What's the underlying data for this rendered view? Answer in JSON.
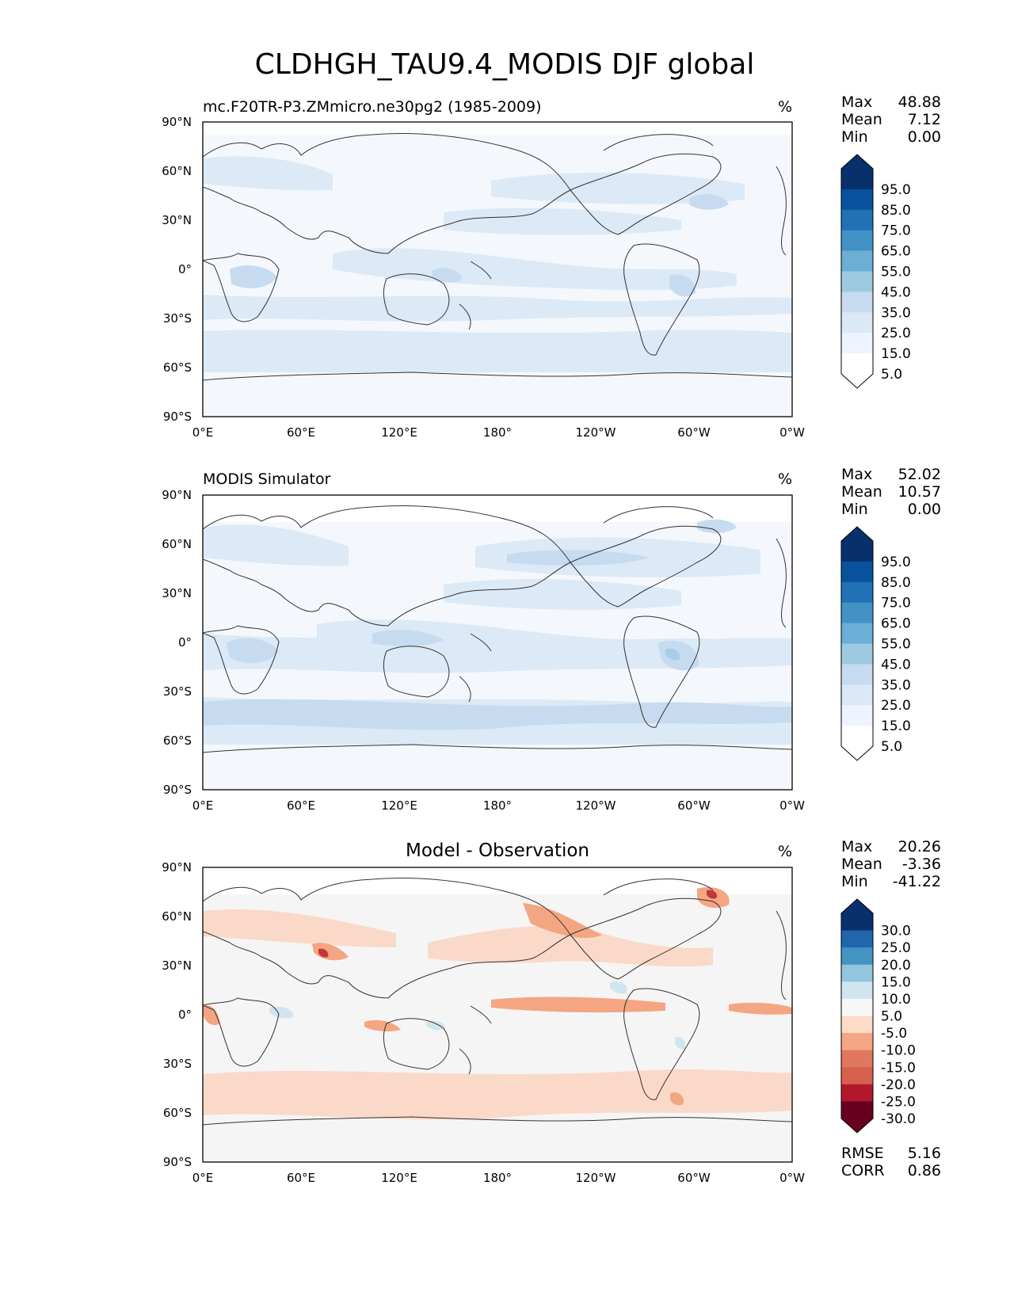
{
  "figure": {
    "title": "CLDHGH_TAU9.4_MODIS DJF global"
  },
  "axes": {
    "lat_ticks": [
      "90°N",
      "60°N",
      "30°N",
      "0°",
      "30°S",
      "60°S",
      "90°S"
    ],
    "lon_ticks": [
      "0°E",
      "60°E",
      "120°E",
      "180°",
      "120°W",
      "60°W",
      "0°W"
    ]
  },
  "panels": [
    {
      "id": "model",
      "left_title": "mc.F20TR-P3.ZMmicro.ne30pg2 (1985-2009)",
      "center_title": "",
      "units": "%",
      "stats": [
        {
          "label": "Max",
          "value": "48.88"
        },
        {
          "label": "Mean",
          "value": "7.12"
        },
        {
          "label": "Min",
          "value": "0.00"
        }
      ],
      "colorbar": {
        "labels": [
          "95.0",
          "85.0",
          "75.0",
          "65.0",
          "55.0",
          "45.0",
          "35.0",
          "25.0",
          "15.0",
          "5.0"
        ],
        "colors": [
          "#08306b",
          "#08519c",
          "#2171b5",
          "#4292c6",
          "#6baed6",
          "#9ecae1",
          "#c6dbef",
          "#dbe9f6",
          "#eff3ff",
          "#ffffff"
        ],
        "extend_top": "#08306b",
        "extend_bottom": "#ffffff"
      },
      "footer": []
    },
    {
      "id": "obs",
      "left_title": "MODIS Simulator",
      "center_title": "",
      "units": "%",
      "stats": [
        {
          "label": "Max",
          "value": "52.02"
        },
        {
          "label": "Mean",
          "value": "10.57"
        },
        {
          "label": "Min",
          "value": "0.00"
        }
      ],
      "colorbar": {
        "labels": [
          "95.0",
          "85.0",
          "75.0",
          "65.0",
          "55.0",
          "45.0",
          "35.0",
          "25.0",
          "15.0",
          "5.0"
        ],
        "colors": [
          "#08306b",
          "#08519c",
          "#2171b5",
          "#4292c6",
          "#6baed6",
          "#9ecae1",
          "#c6dbef",
          "#dbe9f6",
          "#eff3ff",
          "#ffffff"
        ],
        "extend_top": "#08306b",
        "extend_bottom": "#ffffff"
      },
      "footer": []
    },
    {
      "id": "diff",
      "left_title": "",
      "center_title": "Model - Observation",
      "units": "%",
      "stats": [
        {
          "label": "Max",
          "value": "20.26"
        },
        {
          "label": "Mean",
          "value": "-3.36"
        },
        {
          "label": "Min",
          "value": "-41.22"
        }
      ],
      "colorbar": {
        "labels": [
          "30.0",
          "25.0",
          "20.0",
          "15.0",
          "10.0",
          "5.0",
          "-5.0",
          "-10.0",
          "-15.0",
          "-20.0",
          "-25.0",
          "-30.0"
        ],
        "colors": [
          "#08306b",
          "#2166ac",
          "#4393c3",
          "#92c5de",
          "#d1e5f0",
          "#f7f7f7",
          "#fddbc7",
          "#f4a582",
          "#e0775f",
          "#d6604d",
          "#b2182b",
          "#67001f"
        ],
        "extend_top": "#08306b",
        "extend_bottom": "#67001f"
      },
      "footer": [
        {
          "label": "RMSE",
          "value": "5.16"
        },
        {
          "label": "CORR",
          "value": "0.86"
        }
      ]
    }
  ],
  "colors": {
    "ocean_light": "#f4f8fd",
    "blue_band_1": "#dce9f6",
    "blue_band_2": "#c6dbef",
    "blue_band_3": "#a9cce6",
    "diff_neutral": "#f5f5f5",
    "diff_red_1": "#fbd9c8",
    "diff_red_2": "#f4a582",
    "diff_red_3": "#c2363a",
    "diff_blue_1": "#d1e5f0",
    "coastline": "#333333"
  }
}
